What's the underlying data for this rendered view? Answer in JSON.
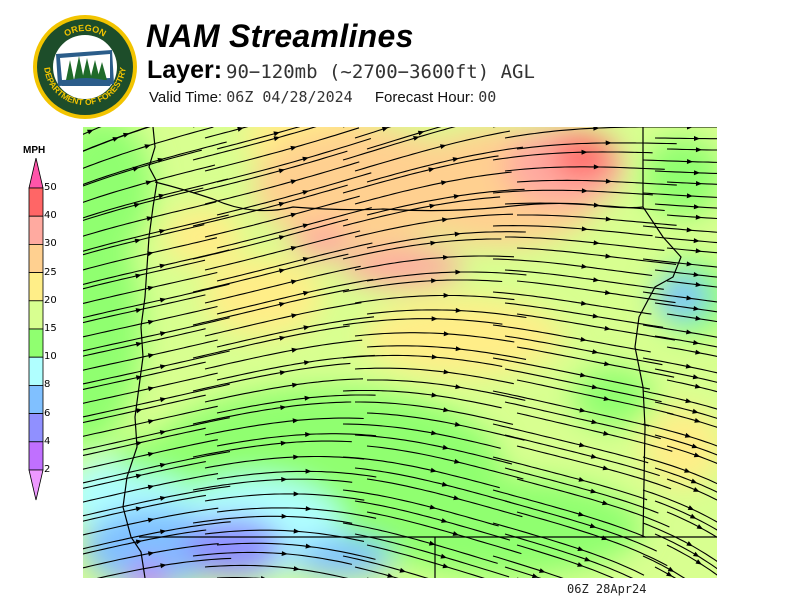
{
  "header": {
    "title": "NAM Streamlines",
    "layer_label": "Layer:",
    "layer_value": "90−120mb (~2700−3600ft) AGL",
    "valid_label": "Valid Time:",
    "valid_value": "06Z 04/28/2024",
    "forecast_label": "Forecast Hour:",
    "forecast_value": "00"
  },
  "logo": {
    "text_top": "OREGON",
    "text_bottom": "DEPARTMENT OF FORESTRY",
    "colors": {
      "ring": "#f2c400",
      "field": "#1d4d2a"
    }
  },
  "colorbar": {
    "units": "MPH",
    "bins": [
      {
        "label": "2",
        "color": "#c070ff"
      },
      {
        "label": "4",
        "color": "#9090ff"
      },
      {
        "label": "6",
        "color": "#80c0ff"
      },
      {
        "label": "8",
        "color": "#b0ffff"
      },
      {
        "label": "10",
        "color": "#90ff70"
      },
      {
        "label": "15",
        "color": "#d8ff90"
      },
      {
        "label": "20",
        "color": "#ffee88"
      },
      {
        "label": "25",
        "color": "#ffd090"
      },
      {
        "label": "30",
        "color": "#ffaaa0"
      },
      {
        "label": "40",
        "color": "#ff6666"
      },
      {
        "label": "50",
        "color": "#ff55aa"
      }
    ],
    "below_color": "#ee99ff",
    "above_color": "#ff55aa"
  },
  "map": {
    "region": "Oregon",
    "streamline_color": "#000000",
    "border_color": "#000000"
  },
  "footer": {
    "timestamp": "06Z 28Apr24"
  }
}
